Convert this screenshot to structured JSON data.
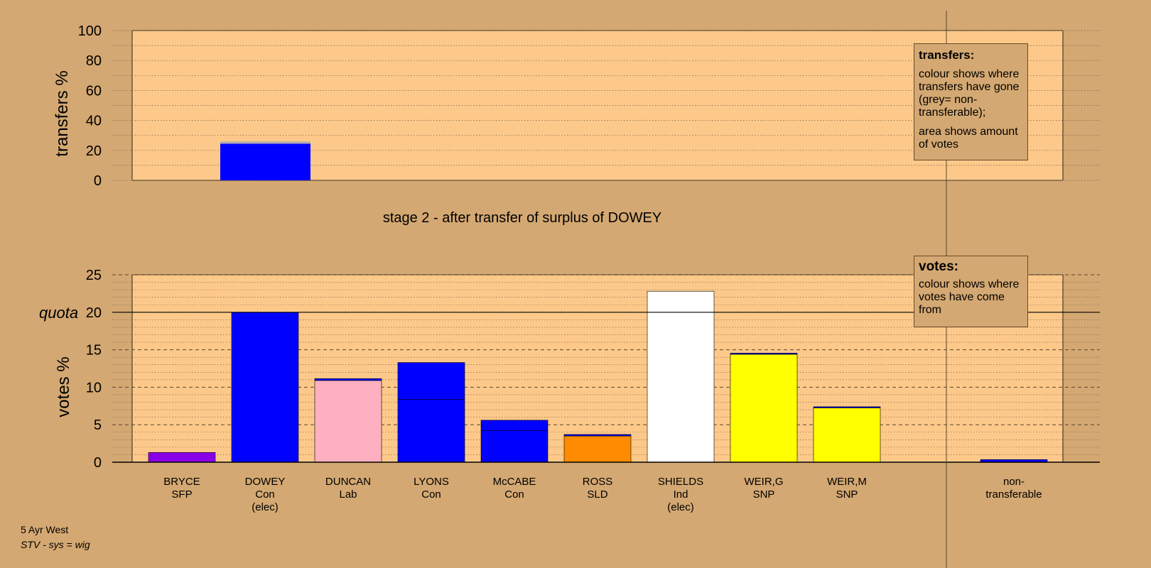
{
  "colors": {
    "background": "#d4a872",
    "plot_area": "#fdc98a",
    "grid": "#6b5a45",
    "axis": "#000000"
  },
  "legends": {
    "transfers": {
      "title": "transfers:",
      "line1": "colour shows where transfers have gone (grey= non-transferable);",
      "line2": "area shows amount of votes"
    },
    "votes": {
      "title": "votes:",
      "line1": "colour shows where votes have come from"
    }
  },
  "footer": {
    "place": "5 Ayr West",
    "system": "STV - sys = wig"
  },
  "chart_data": [
    {
      "type": "bar",
      "id": "transfers",
      "ylabel": "transfers %",
      "ylim": [
        0,
        100
      ],
      "yticks": [
        "0",
        "20",
        "40",
        "60",
        "80",
        "100"
      ],
      "series": [
        {
          "category": "DOWEY",
          "color": "#0000ff",
          "value": 24.5
        },
        {
          "category": "DOWEY",
          "color": "#b0b0b0",
          "value": 1.5
        }
      ]
    },
    {
      "type": "bar",
      "id": "votes",
      "title": "stage 2 - after transfer of surplus of DOWEY",
      "ylabel": "votes %",
      "ylim": [
        0,
        25
      ],
      "yticks": [
        "0",
        "5",
        "10",
        "15",
        "20",
        "25"
      ],
      "quota": {
        "label": "quota",
        "value": 20
      },
      "categories": [
        {
          "name": "BRYCE",
          "party": "SFP",
          "note": ""
        },
        {
          "name": "DOWEY",
          "party": "Con",
          "note": "(elec)"
        },
        {
          "name": "DUNCAN",
          "party": "Lab",
          "note": ""
        },
        {
          "name": "LYONS",
          "party": "Con",
          "note": ""
        },
        {
          "name": "McCABE",
          "party": "Con",
          "note": ""
        },
        {
          "name": "ROSS",
          "party": "SLD",
          "note": ""
        },
        {
          "name": "SHIELDS",
          "party": "Ind",
          "note": "(elec)"
        },
        {
          "name": "WEIR,G",
          "party": "SNP",
          "note": ""
        },
        {
          "name": "WEIR,M",
          "party": "SNP",
          "note": ""
        }
      ],
      "bars": [
        {
          "segments": [
            {
              "value": 1.3,
              "color": "#8a00e6"
            }
          ]
        },
        {
          "segments": [
            {
              "value": 20.0,
              "color": "#0000ff"
            }
          ]
        },
        {
          "segments": [
            {
              "value": 10.9,
              "color": "#ffb0c0"
            },
            {
              "value": 0.25,
              "color": "#0000ff"
            }
          ]
        },
        {
          "segments": [
            {
              "value": 8.4,
              "color": "#0000ff"
            },
            {
              "value": 4.9,
              "color": "#0000ff"
            }
          ]
        },
        {
          "segments": [
            {
              "value": 4.2,
              "color": "#0000ff"
            },
            {
              "value": 1.4,
              "color": "#0000ff"
            }
          ]
        },
        {
          "segments": [
            {
              "value": 3.5,
              "color": "#ff8c00"
            },
            {
              "value": 0.2,
              "color": "#0000ff"
            }
          ]
        },
        {
          "segments": [
            {
              "value": 22.8,
              "color": "#ffffff"
            }
          ]
        },
        {
          "segments": [
            {
              "value": 14.4,
              "color": "#ffff00"
            },
            {
              "value": 0.15,
              "color": "#0000ff"
            }
          ]
        },
        {
          "segments": [
            {
              "value": 7.25,
              "color": "#ffff00"
            },
            {
              "value": 0.15,
              "color": "#0000ff"
            }
          ]
        }
      ],
      "non_transferable": {
        "label_line1": "non-",
        "label_line2": "transferable",
        "value": 0.35,
        "color": "#0000ff"
      }
    }
  ]
}
